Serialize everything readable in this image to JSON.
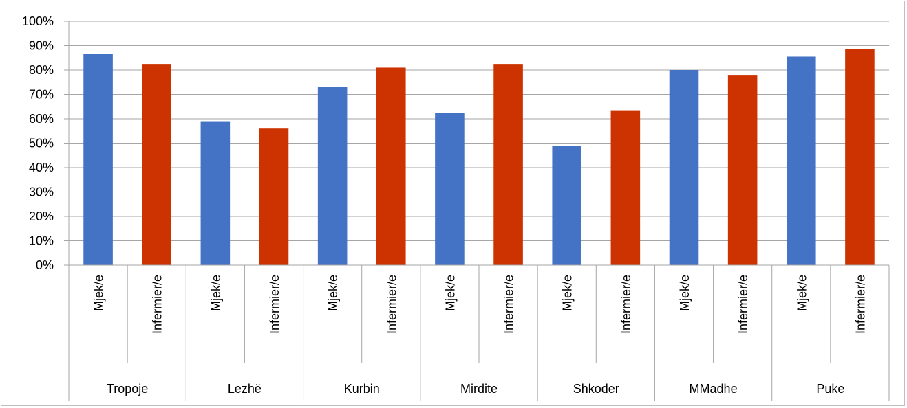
{
  "chart_data": {
    "type": "bar",
    "y_ticks": [
      "0%",
      "10%",
      "20%",
      "30%",
      "40%",
      "50%",
      "60%",
      "70%",
      "80%",
      "90%",
      "100%"
    ],
    "ylim": [
      0,
      100
    ],
    "grid": true,
    "groups": [
      {
        "name": "Tropoje",
        "bars": [
          {
            "label": "Mjek/e",
            "value": 86.5
          },
          {
            "label": "Infermier/e",
            "value": 82.5
          }
        ]
      },
      {
        "name": "Lezhë",
        "bars": [
          {
            "label": "Mjek/e",
            "value": 59
          },
          {
            "label": "Infermier/e",
            "value": 56
          }
        ]
      },
      {
        "name": "Kurbin",
        "bars": [
          {
            "label": "Mjek/e",
            "value": 73
          },
          {
            "label": "Infermier/e",
            "value": 81
          }
        ]
      },
      {
        "name": "Mirdite",
        "bars": [
          {
            "label": "Mjek/e",
            "value": 62.5
          },
          {
            "label": "Infermier/e",
            "value": 82.5
          }
        ]
      },
      {
        "name": "Shkoder",
        "bars": [
          {
            "label": "Mjek/e",
            "value": 49
          },
          {
            "label": "Infermier/e",
            "value": 63.5
          }
        ]
      },
      {
        "name": "MMadhe",
        "bars": [
          {
            "label": "Mjek/e",
            "value": 80
          },
          {
            "label": "Infermier/e",
            "value": 78
          }
        ]
      },
      {
        "name": "Puke",
        "bars": [
          {
            "label": "Mjek/e",
            "value": 85.5
          },
          {
            "label": "Infermier/e",
            "value": 88.5
          }
        ]
      }
    ],
    "colors": {
      "Mjek/e": "#4472c4",
      "Infermier/e": "#cc3300",
      "grid": "#a6a6a6",
      "axis": "#a6a6a6"
    }
  }
}
